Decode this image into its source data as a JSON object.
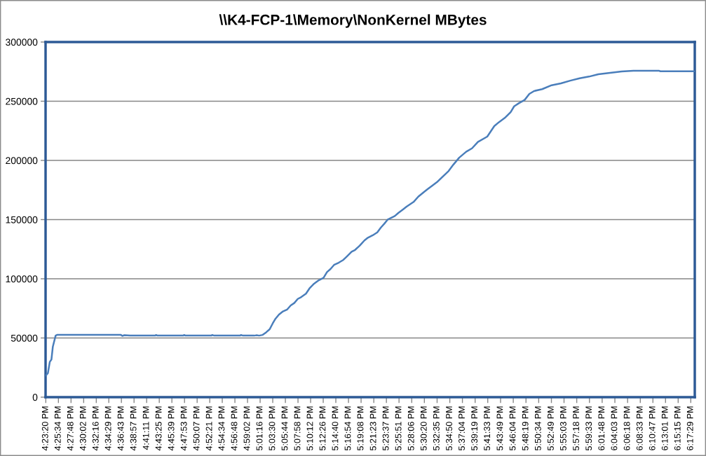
{
  "chart_data": {
    "type": "line",
    "title": "\\\\K4-FCP-1\\Memory\\NonKernel MBytes",
    "color": "#4a7ebb",
    "x": [
      16.3889,
      16.3951,
      16.4007,
      16.4055,
      16.4096,
      16.4179,
      16.422,
      16.6104,
      16.6146,
      16.6208,
      16.6373,
      16.7119,
      16.7139,
      16.7181,
      16.7947,
      16.7967,
      16.8009,
      16.8775,
      16.8795,
      16.8857,
      16.9623,
      16.9644,
      16.9706,
      17.0037,
      17.01,
      17.0182,
      17.0286,
      17.0389,
      17.0493,
      17.0582,
      17.0665,
      17.0768,
      17.0872,
      17.101,
      17.1114,
      17.1218,
      17.1321,
      17.1425,
      17.1563,
      17.1667,
      17.1803,
      17.1942,
      17.2081,
      17.2184,
      17.2288,
      17.2391,
      17.2528,
      17.2667,
      17.277,
      17.2909,
      17.3012,
      17.3149,
      17.3288,
      17.3391,
      17.353,
      17.3667,
      17.377,
      17.3874,
      17.3977,
      17.4184,
      17.4288,
      17.4426,
      17.453,
      17.4737,
      17.4876,
      17.5047,
      17.5151,
      17.529,
      17.5426,
      17.5772,
      17.591,
      17.6082,
      17.6289,
      17.6461,
      17.6635,
      17.6911,
      17.7118,
      17.7256,
      17.7428,
      17.76,
      17.7704,
      17.7842,
      17.8014,
      17.8153,
      17.8291,
      17.8532,
      17.8809,
      17.9084,
      17.936,
      17.9637,
      17.9912,
      18.0188,
      18.0533,
      18.0879,
      18.1223,
      18.1983,
      18.2018,
      18.3007
    ],
    "values": [
      18300,
      20300,
      29800,
      31800,
      42600,
      52000,
      52600,
      52600,
      51800,
      52400,
      52000,
      52000,
      52500,
      52000,
      52000,
      52500,
      52000,
      52000,
      52500,
      52000,
      52000,
      52500,
      52000,
      52000,
      52300,
      52000,
      52600,
      54800,
      57400,
      62300,
      66300,
      69800,
      72200,
      74100,
      77500,
      79500,
      83000,
      84600,
      87400,
      91900,
      95900,
      98800,
      100800,
      105700,
      108300,
      111700,
      113600,
      116000,
      118900,
      122900,
      124400,
      128000,
      132400,
      134700,
      136700,
      139200,
      143200,
      146500,
      150100,
      153000,
      155600,
      158600,
      160900,
      164900,
      169400,
      173400,
      175700,
      178700,
      181600,
      191100,
      196400,
      202300,
      207300,
      210200,
      215600,
      220100,
      229000,
      232300,
      235900,
      240800,
      245700,
      248300,
      251100,
      256200,
      258600,
      260200,
      263500,
      265100,
      267400,
      269400,
      270800,
      272800,
      274000,
      275100,
      275700,
      275700,
      275300,
      275300
    ],
    "xlim": [
      16.3882,
      18.3032
    ],
    "xticks": [
      {
        "value": 16.3889,
        "label": "4:23:20 PM"
      },
      {
        "value": 16.4261,
        "label": "4:25:34 PM"
      },
      {
        "value": 16.4633,
        "label": "4:27:48 PM"
      },
      {
        "value": 16.5006,
        "label": "4:30:02 PM"
      },
      {
        "value": 16.5378,
        "label": "4:32:16 PM"
      },
      {
        "value": 16.5747,
        "label": "4:34:29 PM"
      },
      {
        "value": 16.6119,
        "label": "4:36:43 PM"
      },
      {
        "value": 16.6492,
        "label": "4:38:57 PM"
      },
      {
        "value": 16.6864,
        "label": "4:41:11 PM"
      },
      {
        "value": 16.7236,
        "label": "4:43:25 PM"
      },
      {
        "value": 16.7608,
        "label": "4:45:39 PM"
      },
      {
        "value": 16.7981,
        "label": "4:47:53 PM"
      },
      {
        "value": 16.8353,
        "label": "4:50:07 PM"
      },
      {
        "value": 16.8725,
        "label": "4:52:21 PM"
      },
      {
        "value": 16.9094,
        "label": "4:54:34 PM"
      },
      {
        "value": 16.9467,
        "label": "4:56:48 PM"
      },
      {
        "value": 16.9839,
        "label": "4:59:02 PM"
      },
      {
        "value": 17.0211,
        "label": "5:01:16 PM"
      },
      {
        "value": 17.0583,
        "label": "5:03:30 PM"
      },
      {
        "value": 17.0956,
        "label": "5:05:44 PM"
      },
      {
        "value": 17.1328,
        "label": "5:07:58 PM"
      },
      {
        "value": 17.17,
        "label": "5:10:12 PM"
      },
      {
        "value": 17.2072,
        "label": "5:12:26 PM"
      },
      {
        "value": 17.2444,
        "label": "5:14:40 PM"
      },
      {
        "value": 17.2817,
        "label": "5:16:54 PM"
      },
      {
        "value": 17.3189,
        "label": "5:19:08 PM"
      },
      {
        "value": 17.3564,
        "label": "5:21:23 PM"
      },
      {
        "value": 17.3936,
        "label": "5:23:37 PM"
      },
      {
        "value": 17.4308,
        "label": "5:25:51 PM"
      },
      {
        "value": 17.4683,
        "label": "5:28:06 PM"
      },
      {
        "value": 17.5056,
        "label": "5:30:20 PM"
      },
      {
        "value": 17.5431,
        "label": "5:32:35 PM"
      },
      {
        "value": 17.5806,
        "label": "5:34:50 PM"
      },
      {
        "value": 17.6178,
        "label": "5:37:04 PM"
      },
      {
        "value": 17.6553,
        "label": "5:39:19 PM"
      },
      {
        "value": 17.6925,
        "label": "5:41:33 PM"
      },
      {
        "value": 17.7303,
        "label": "5:43:49 PM"
      },
      {
        "value": 17.7678,
        "label": "5:46:04 PM"
      },
      {
        "value": 17.8053,
        "label": "5:48:19 PM"
      },
      {
        "value": 17.8428,
        "label": "5:50:34 PM"
      },
      {
        "value": 17.8803,
        "label": "5:52:49 PM"
      },
      {
        "value": 17.9175,
        "label": "5:55:03 PM"
      },
      {
        "value": 17.955,
        "label": "5:57:18 PM"
      },
      {
        "value": 17.9925,
        "label": "5:59:33 PM"
      },
      {
        "value": 18.03,
        "label": "6:01:48 PM"
      },
      {
        "value": 18.0675,
        "label": "6:04:03 PM"
      },
      {
        "value": 18.105,
        "label": "6:06:18 PM"
      },
      {
        "value": 18.1425,
        "label": "6:08:33 PM"
      },
      {
        "value": 18.1797,
        "label": "6:10:47 PM"
      },
      {
        "value": 18.2169,
        "label": "6:13:01 PM"
      },
      {
        "value": 18.2542,
        "label": "6:15:15 PM"
      },
      {
        "value": 18.2914,
        "label": "6:17:29 PM"
      }
    ],
    "ylim": [
      0,
      300000
    ],
    "yticks": [
      0,
      50000,
      100000,
      150000,
      200000,
      250000,
      300000
    ],
    "grid": "y"
  }
}
